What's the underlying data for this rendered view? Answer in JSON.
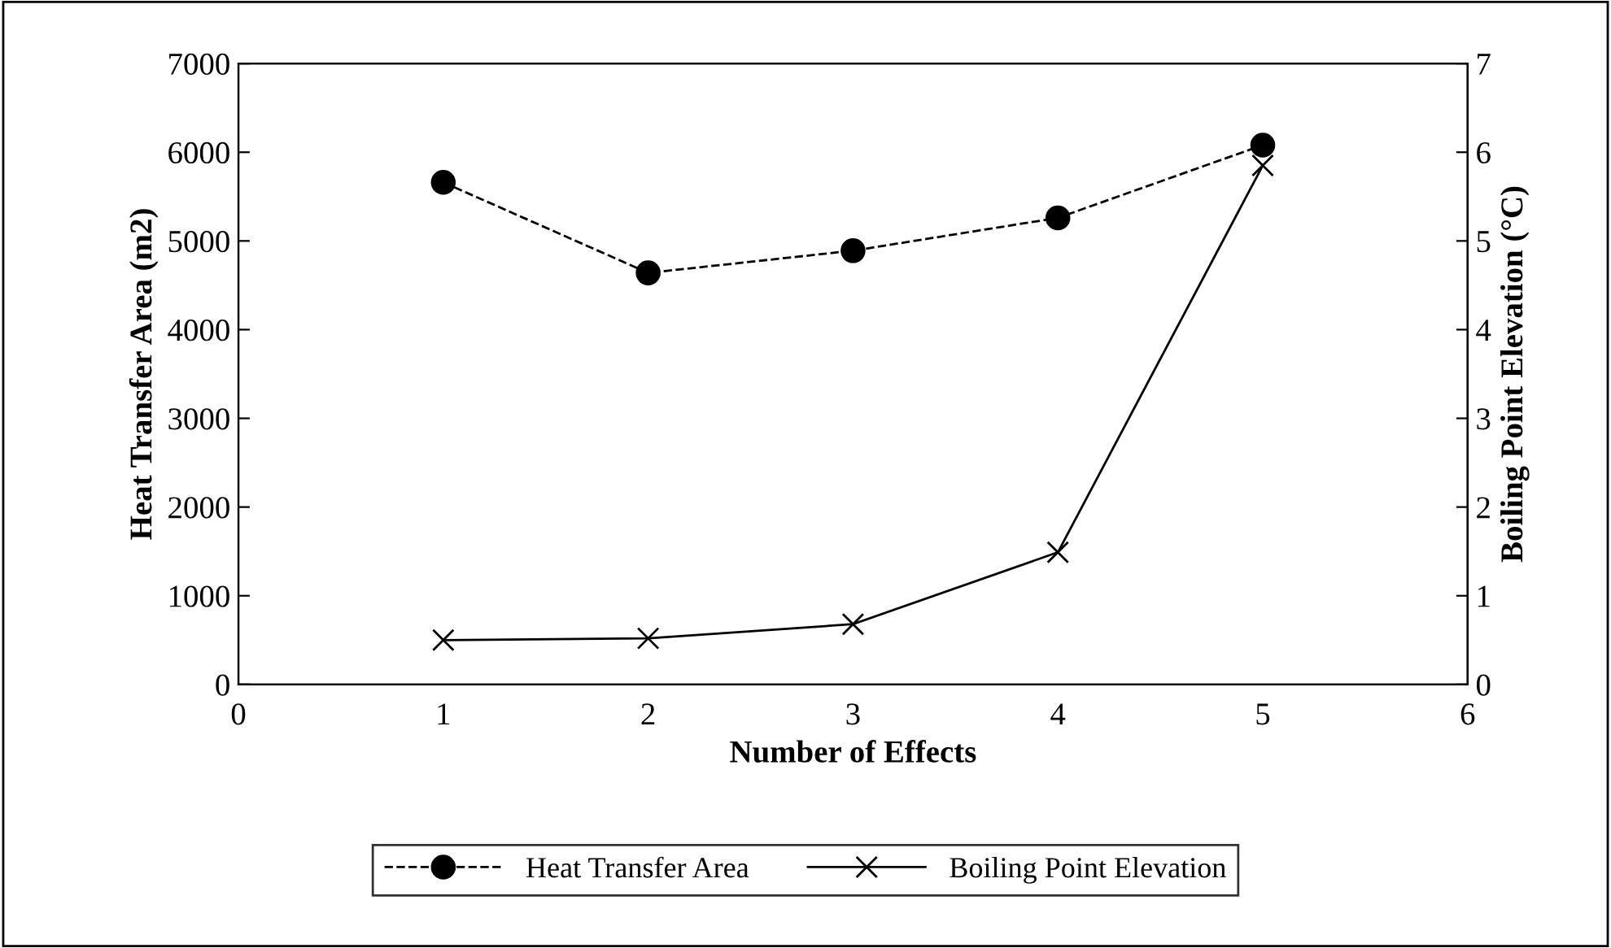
{
  "chart_data": {
    "type": "line",
    "xlabel": "Number of Effects",
    "ylabel": "Heat Transfer Area (m2)",
    "y2label": "Boiling Point Elevation (°C)",
    "x": [
      1,
      2,
      3,
      4,
      5
    ],
    "series": [
      {
        "name": "Heat Transfer Area",
        "color": "#000000",
        "values": [
          5660,
          4640,
          4890,
          5260,
          6080
        ],
        "marker": "circle",
        "line_style": "dashed"
      },
      {
        "name": "Boiling Point Elevation",
        "color": "#000000",
        "values": [
          0.5,
          0.52,
          0.68,
          1.49,
          5.85
        ],
        "marker": "cross",
        "line_style": "solid",
        "axis": "y2"
      }
    ],
    "xlim": [
      0,
      6
    ],
    "xticks": [
      0,
      1,
      2,
      3,
      4,
      5,
      6
    ],
    "ylim": [
      0,
      7000
    ],
    "yticks": [
      0,
      1000,
      2000,
      3000,
      4000,
      5000,
      6000,
      7000
    ],
    "y2lim": [
      0,
      7
    ],
    "y2ticks": [
      0,
      1,
      2,
      3,
      4,
      5,
      6,
      7
    ],
    "grid": false,
    "legend": "bottom"
  }
}
